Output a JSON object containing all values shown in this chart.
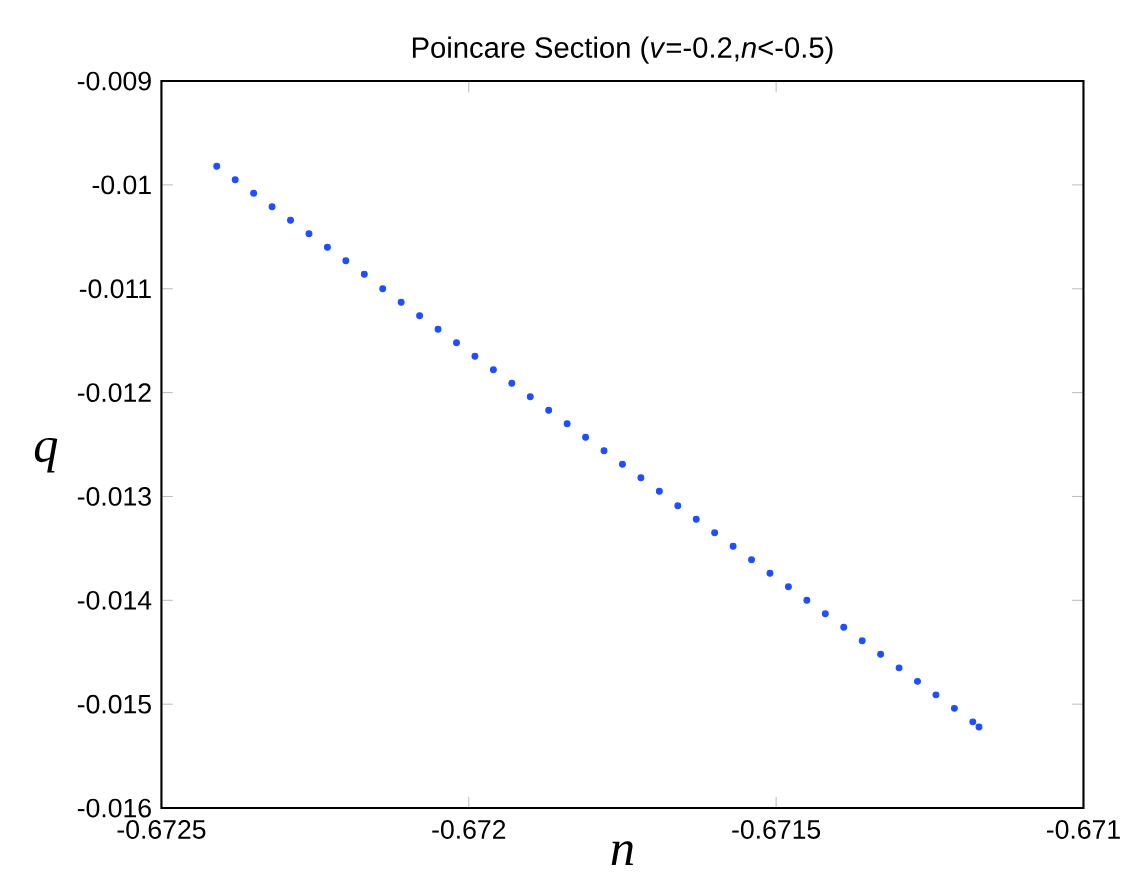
{
  "chart_data": {
    "type": "scatter",
    "title": "Poincare Section (*v*=-0.2,*n*<-0.5)",
    "xlabel": "n",
    "ylabel": "q",
    "x": [
      -0.67241,
      -0.67238,
      -0.67235,
      -0.67232,
      -0.67229,
      -0.67226,
      -0.67223,
      -0.6722,
      -0.67217,
      -0.67214,
      -0.67211,
      -0.67208,
      -0.67205,
      -0.67202,
      -0.67199,
      -0.67196,
      -0.67193,
      -0.6719,
      -0.67187,
      -0.67184,
      -0.67181,
      -0.67178,
      -0.67175,
      -0.67172,
      -0.67169,
      -0.67166,
      -0.67163,
      -0.6716,
      -0.67157,
      -0.67154,
      -0.67151,
      -0.67148,
      -0.67145,
      -0.67142,
      -0.67139,
      -0.67136,
      -0.67133,
      -0.6713,
      -0.67127,
      -0.67124,
      -0.67121,
      -0.67118,
      -0.67117
    ],
    "values": [
      -0.00982,
      -0.00995,
      -0.01008,
      -0.01021,
      -0.01034,
      -0.01047,
      -0.0106,
      -0.01073,
      -0.01086,
      -0.011,
      -0.01113,
      -0.01126,
      -0.01139,
      -0.01152,
      -0.01165,
      -0.01178,
      -0.01191,
      -0.01204,
      -0.01217,
      -0.0123,
      -0.01243,
      -0.01256,
      -0.01269,
      -0.01282,
      -0.01295,
      -0.01309,
      -0.01322,
      -0.01335,
      -0.01348,
      -0.01361,
      -0.01374,
      -0.01387,
      -0.014,
      -0.01413,
      -0.01426,
      -0.01439,
      -0.01452,
      -0.01465,
      -0.01478,
      -0.01491,
      -0.01504,
      -0.01517,
      -0.01522
    ],
    "color": "#1f4dff",
    "xlim": [
      -0.6725,
      -0.671
    ],
    "xticks": [
      -0.6725,
      -0.672,
      -0.6715,
      -0.671
    ],
    "ylim": [
      -0.016,
      -0.009
    ],
    "yticks": [
      -0.016,
      -0.015,
      -0.014,
      -0.013,
      -0.012,
      -0.011,
      -0.01,
      -0.009
    ],
    "grid": false
  }
}
